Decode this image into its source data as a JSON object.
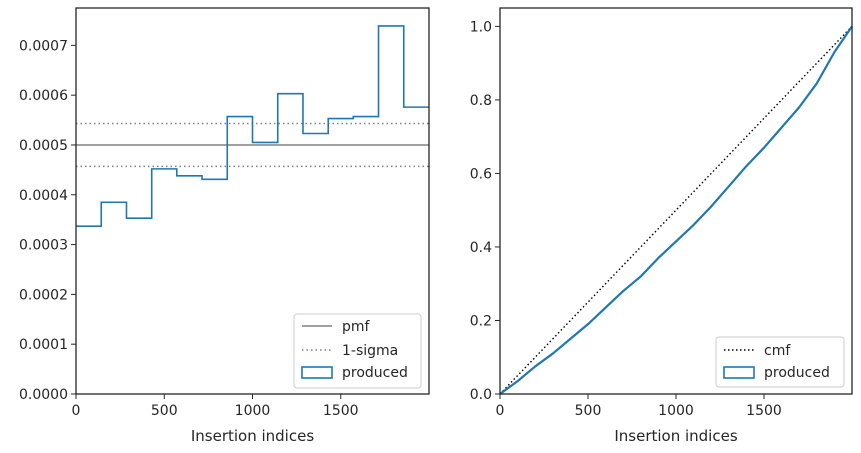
{
  "chart_data": [
    {
      "type": "histogram",
      "xlabel": "Insertion indices",
      "ylabel": "",
      "xlim": [
        0,
        2000
      ],
      "ylim": [
        0,
        0.000775
      ],
      "xticks": [
        0,
        500,
        1000,
        1500
      ],
      "xtick_labels": [
        "0",
        "500",
        "1000",
        "1500"
      ],
      "yticks": [
        0,
        0.0001,
        0.0002,
        0.0003,
        0.0004,
        0.0005,
        0.0006,
        0.0007
      ],
      "ytick_labels": [
        "0.0000",
        "0.0001",
        "0.0002",
        "0.0003",
        "0.0004",
        "0.0005",
        "0.0006",
        "0.0007"
      ],
      "bin_edges": [
        0,
        143,
        286,
        429,
        571,
        714,
        857,
        1000,
        1143,
        1286,
        1429,
        1571,
        1714,
        1857,
        2000
      ],
      "bin_values": [
        0.000337,
        0.000385,
        0.000353,
        0.000452,
        0.000438,
        0.000431,
        0.000557,
        0.000505,
        0.000603,
        0.000523,
        0.000553,
        0.000557,
        0.000739,
        0.000576
      ],
      "pmf": 0.0005,
      "sigma_lower": 0.000457,
      "sigma_upper": 0.000543,
      "legend_position": "lower-right",
      "legend": [
        "pmf",
        "1-sigma",
        "produced"
      ],
      "colors": {
        "produced": "#1f77b4",
        "pmf": "#808080",
        "sigma": "#808080"
      }
    },
    {
      "type": "line",
      "xlabel": "Insertion indices",
      "ylabel": "",
      "xlim": [
        0,
        2000
      ],
      "ylim": [
        0,
        1.05
      ],
      "xticks": [
        0,
        500,
        1000,
        1500
      ],
      "xtick_labels": [
        "0",
        "500",
        "1000",
        "1500"
      ],
      "yticks": [
        0,
        0.2,
        0.4,
        0.6,
        0.8,
        1.0
      ],
      "ytick_labels": [
        "0.0",
        "0.2",
        "0.4",
        "0.6",
        "0.8",
        "1.0"
      ],
      "cmf": {
        "x": [
          0,
          2000
        ],
        "y": [
          0,
          1
        ]
      },
      "produced": {
        "x": [
          0,
          100,
          200,
          300,
          400,
          500,
          600,
          700,
          800,
          900,
          1000,
          1100,
          1200,
          1300,
          1400,
          1500,
          1600,
          1700,
          1800,
          1900,
          2000
        ],
        "y": [
          0,
          0.035,
          0.075,
          0.11,
          0.15,
          0.19,
          0.235,
          0.28,
          0.32,
          0.37,
          0.415,
          0.46,
          0.51,
          0.565,
          0.62,
          0.67,
          0.725,
          0.78,
          0.845,
          0.93,
          1.0
        ]
      },
      "legend_position": "lower-right",
      "legend": [
        "cmf",
        "produced"
      ],
      "colors": {
        "produced": "#1f77b4",
        "cmf": "#000000"
      }
    }
  ]
}
